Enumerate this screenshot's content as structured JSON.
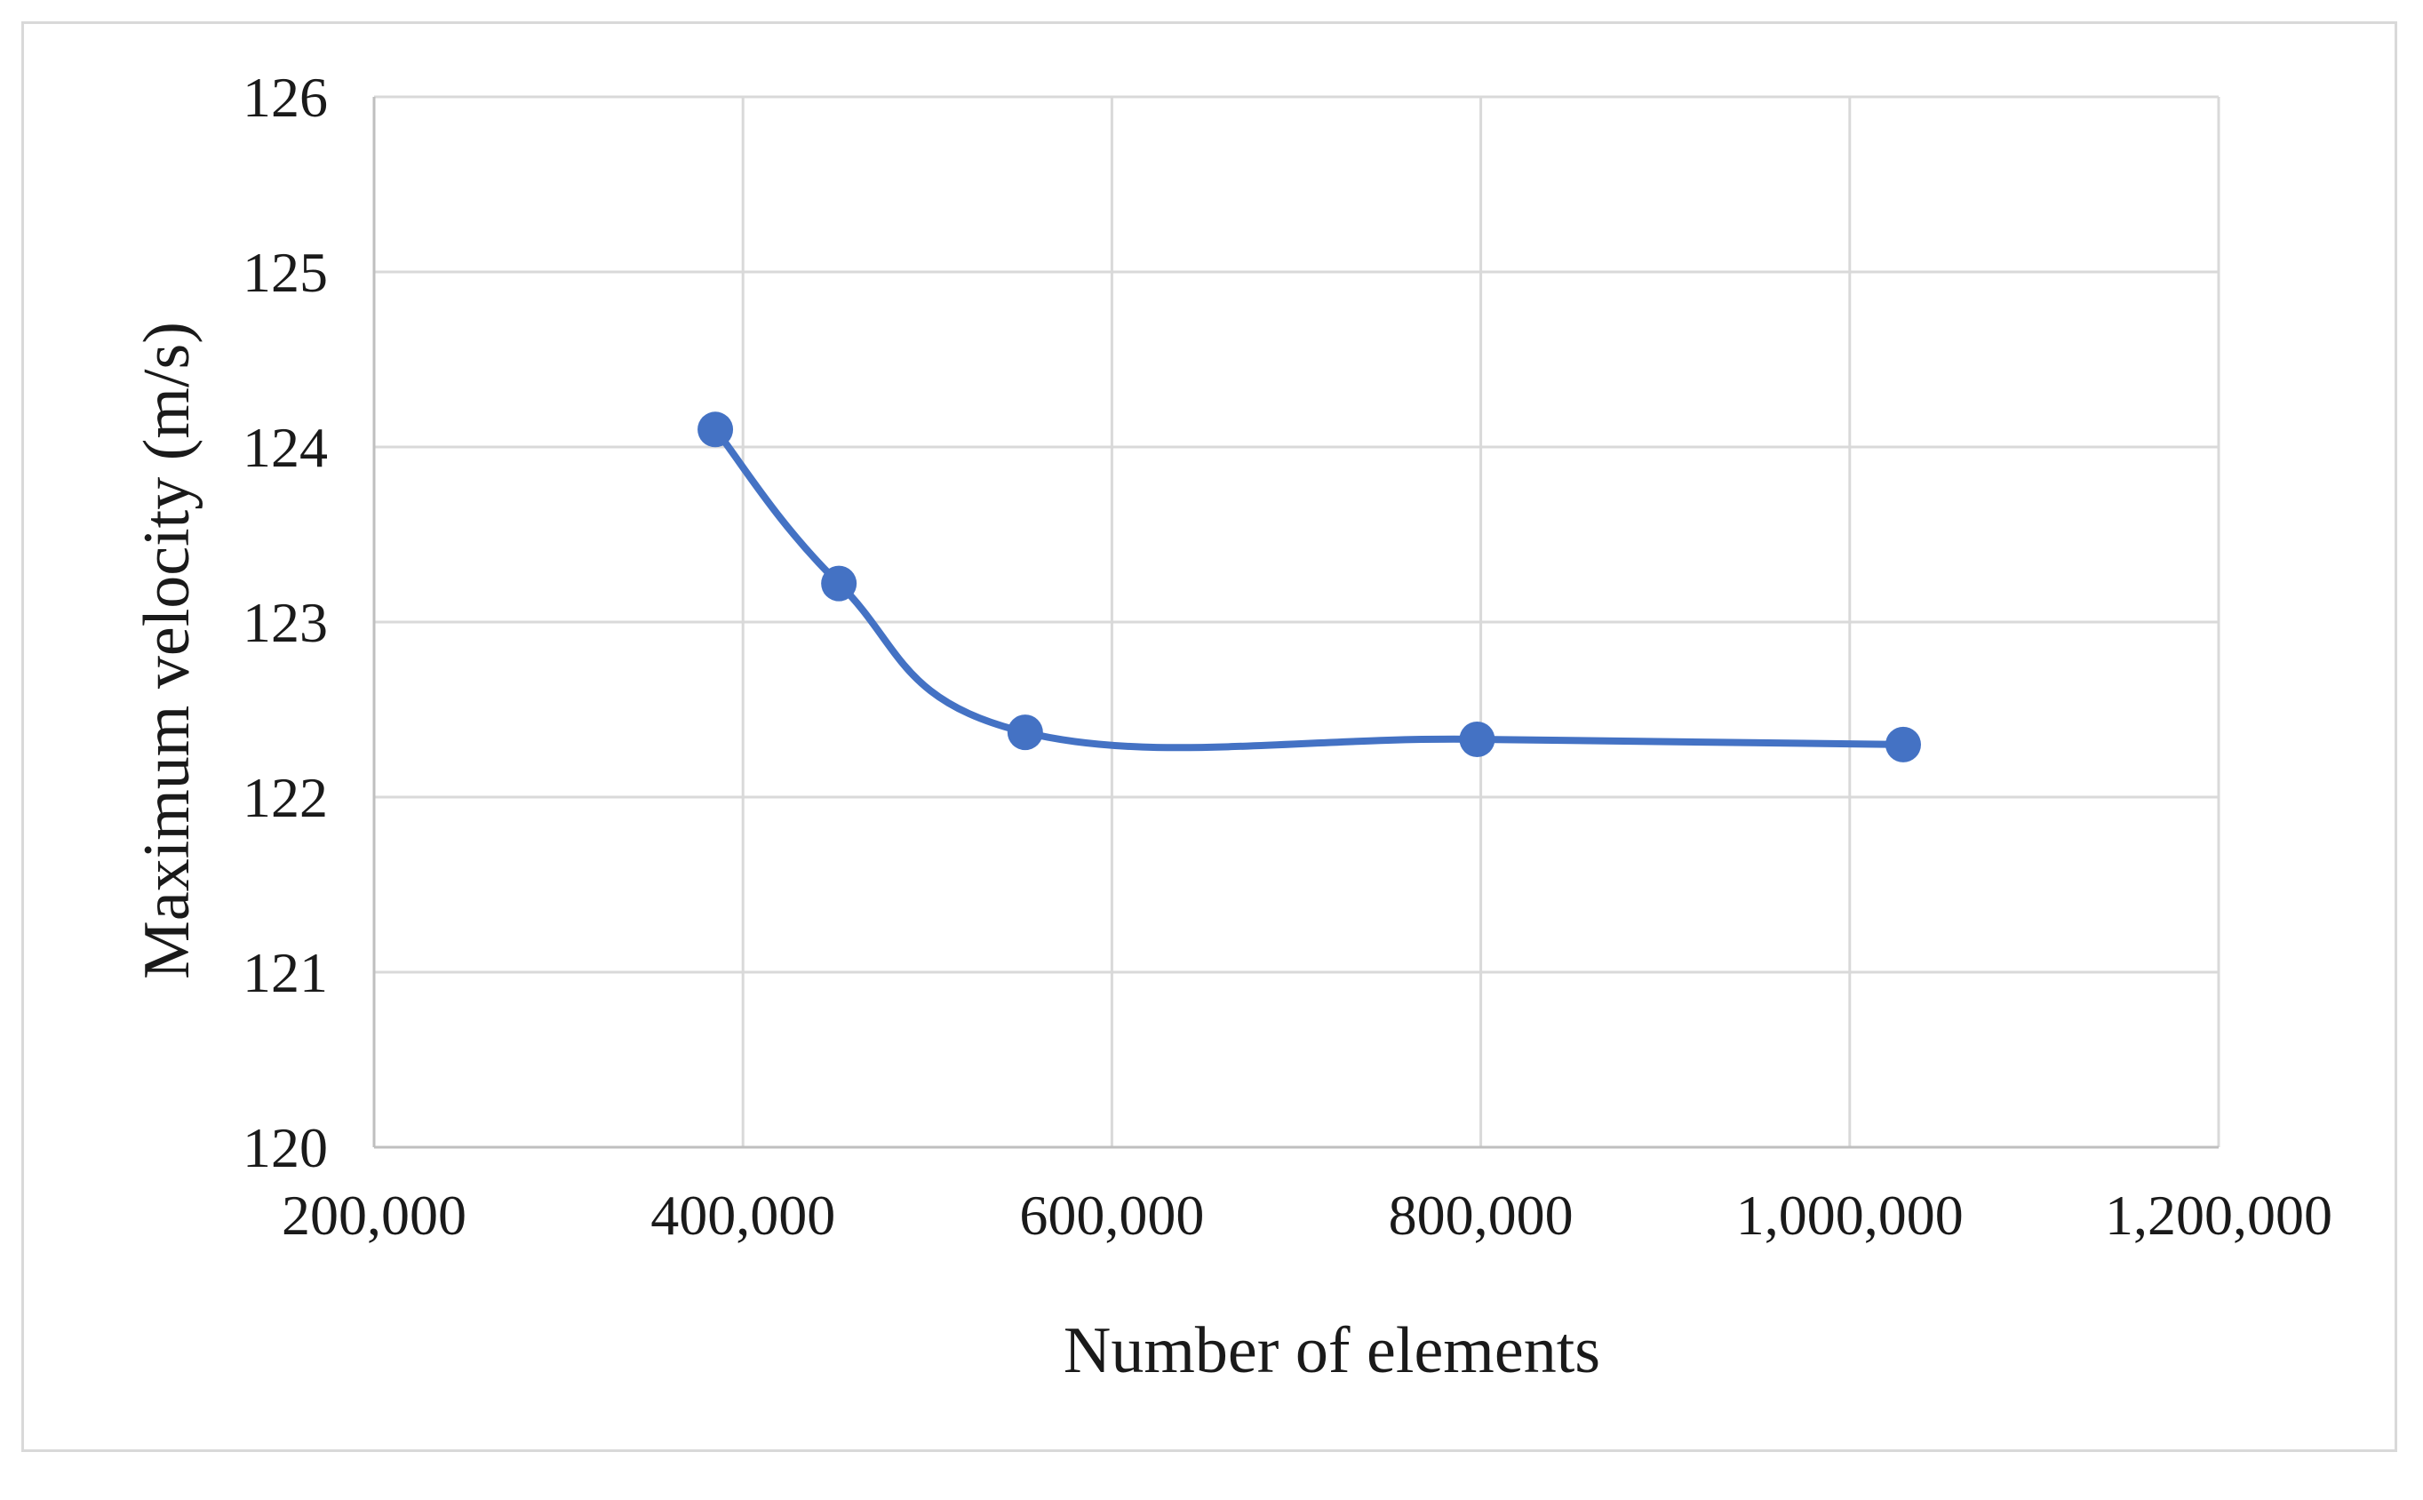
{
  "chart_data": {
    "type": "scatter",
    "title": "",
    "xlabel": "Number of elements",
    "ylabel": "Maximum velocity (m/s)",
    "xlim": [
      200000,
      1200000
    ],
    "ylim": [
      120,
      126
    ],
    "x_ticks": [
      "200,000",
      "400,000",
      "600,000",
      "800,000",
      "1,000,000",
      "1,200,000"
    ],
    "y_ticks": [
      "120",
      "121",
      "122",
      "123",
      "124",
      "125",
      "126"
    ],
    "x_tick_values": [
      200000,
      400000,
      600000,
      800000,
      1000000,
      1200000
    ],
    "y_tick_values": [
      120,
      121,
      122,
      123,
      124,
      125,
      126
    ],
    "grid": true,
    "line_style": "smooth",
    "series": [
      {
        "x": [
          385000,
          452000,
          553000,
          798000,
          1029000
        ],
        "y": [
          124.1,
          123.22,
          122.37,
          122.33,
          122.3
        ],
        "color": "#4472c4"
      }
    ]
  }
}
